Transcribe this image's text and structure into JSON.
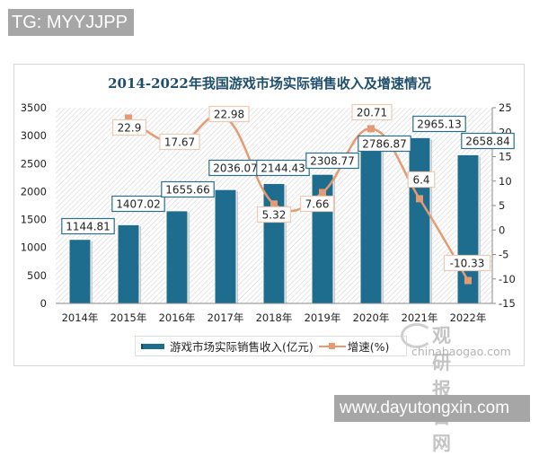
{
  "watermarks": {
    "top": "TG: MYYJJPP",
    "bottom": "www.dayutongxin.com",
    "brand_cn": "观研报告网",
    "brand_en": "chinabaogao.com"
  },
  "chart": {
    "title": "2014-2022年我国游戏市场实际销售收入及增速情况",
    "left_axis_ticks": [
      "3500",
      "3000",
      "2500",
      "2000",
      "1500",
      "1000",
      "500",
      "0"
    ],
    "right_axis_ticks": [
      "25",
      "20",
      "15",
      "10",
      "5",
      "0",
      "-5",
      "-10",
      "-15"
    ],
    "categories": [
      "2014年",
      "2015年",
      "2016年",
      "2017年",
      "2018年",
      "2019年",
      "2020年",
      "2021年",
      "2022年"
    ],
    "legend": {
      "bar_label": "游戏市场实际销售收入(亿元)",
      "line_label": "增速(%)"
    },
    "bar_labels": [
      "1144.81",
      "1407.02",
      "1655.66",
      "2036.07",
      "2144.43",
      "2308.77",
      "2786.87",
      "2965.13",
      "2658.84"
    ],
    "line_labels": [
      "",
      "22.9",
      "17.67",
      "22.98",
      "5.32",
      "7.66",
      "20.71",
      "6.4",
      "-10.33"
    ]
  },
  "colors": {
    "bar": "#1f6d8e",
    "line": "#e59a72",
    "title": "#1f4e6b",
    "watermark_bg": "#a6a6a6"
  },
  "chart_data": {
    "type": "bar",
    "title": "2014-2022年我国游戏市场实际销售收入及增速情况",
    "categories": [
      "2014年",
      "2015年",
      "2016年",
      "2017年",
      "2018年",
      "2019年",
      "2020年",
      "2021年",
      "2022年"
    ],
    "series": [
      {
        "name": "游戏市场实际销售收入(亿元)",
        "type": "bar",
        "axis": "left",
        "values": [
          1144.81,
          1407.02,
          1655.66,
          2036.07,
          2144.43,
          2308.77,
          2786.87,
          2965.13,
          2658.84
        ]
      },
      {
        "name": "增速(%)",
        "type": "line",
        "axis": "right",
        "values": [
          null,
          22.9,
          17.67,
          22.98,
          5.32,
          7.66,
          20.71,
          6.4,
          -10.33
        ]
      }
    ],
    "xlabel": "",
    "ylabel": "",
    "ylim": [
      0,
      3500
    ],
    "y2lim": [
      -15,
      25
    ],
    "yticks": [
      0,
      500,
      1000,
      1500,
      2000,
      2500,
      3000,
      3500
    ],
    "y2ticks": [
      -15,
      -10,
      -5,
      0,
      5,
      10,
      15,
      20,
      25
    ],
    "grid": false,
    "legend_position": "bottom"
  }
}
